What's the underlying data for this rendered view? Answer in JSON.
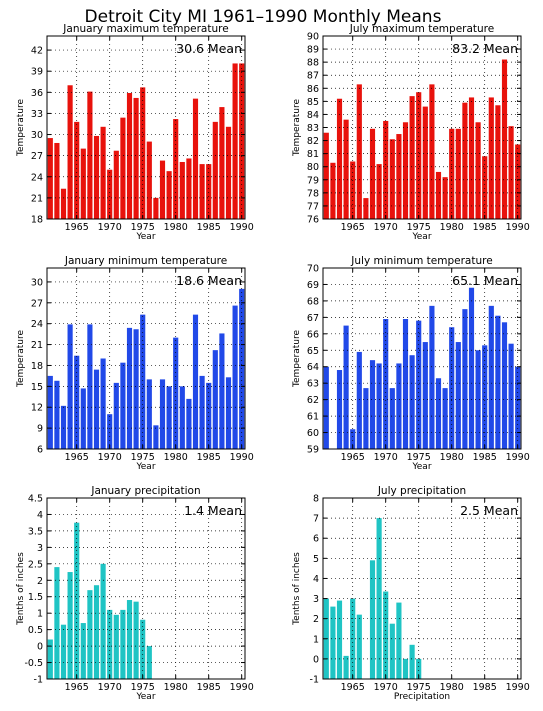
{
  "figure_title": "Detroit City MI   1961–1990 Monthly Means",
  "chart_data": [
    {
      "type": "bar",
      "title": "January maximum temperature",
      "mean_label": "30.6 Mean",
      "xlabel": "Year",
      "ylabel": "Temperature",
      "color": "#e8120c",
      "xlim": [
        1960.5,
        1990.5
      ],
      "xticks": [
        1965,
        1970,
        1975,
        1980,
        1985,
        1990
      ],
      "ylim": [
        18,
        44
      ],
      "yticks": [
        18,
        21,
        24,
        27,
        30,
        33,
        36,
        39,
        42
      ],
      "baseline": 18,
      "grid": true,
      "x": [
        1961,
        1962,
        1963,
        1964,
        1965,
        1966,
        1967,
        1968,
        1969,
        1970,
        1971,
        1972,
        1973,
        1974,
        1975,
        1976,
        1977,
        1978,
        1979,
        1980,
        1981,
        1982,
        1983,
        1984,
        1985,
        1986,
        1987,
        1988,
        1989,
        1990
      ],
      "values": [
        29.5,
        28.8,
        22.3,
        37.0,
        31.8,
        28.0,
        36.1,
        29.8,
        31.1,
        25.0,
        27.7,
        32.4,
        35.9,
        35.2,
        36.7,
        29.0,
        21.0,
        26.3,
        24.8,
        32.2,
        26.1,
        26.6,
        35.1,
        25.8,
        25.8,
        31.8,
        33.9,
        31.1,
        40.1,
        40.1
      ]
    },
    {
      "type": "bar",
      "title": "July maximum temperature",
      "mean_label": "83.2 Mean",
      "xlabel": "Year",
      "ylabel": "Temperature",
      "color": "#e8120c",
      "xlim": [
        1960.5,
        1990.5
      ],
      "xticks": [
        1965,
        1970,
        1975,
        1980,
        1985,
        1990
      ],
      "ylim": [
        76,
        90
      ],
      "yticks": [
        76,
        77,
        78,
        79,
        80,
        81,
        82,
        83,
        84,
        85,
        86,
        87,
        88,
        89,
        90
      ],
      "baseline": 76,
      "grid": true,
      "x": [
        1961,
        1962,
        1963,
        1964,
        1965,
        1966,
        1967,
        1968,
        1969,
        1970,
        1971,
        1972,
        1973,
        1974,
        1975,
        1976,
        1977,
        1978,
        1979,
        1980,
        1981,
        1982,
        1983,
        1984,
        1985,
        1986,
        1987,
        1988,
        1989,
        1990
      ],
      "values": [
        82.6,
        80.3,
        85.2,
        83.6,
        80.4,
        86.3,
        77.6,
        82.9,
        80.2,
        83.5,
        82.1,
        82.5,
        83.4,
        85.4,
        85.7,
        84.6,
        86.3,
        79.6,
        79.2,
        82.9,
        82.9,
        84.9,
        85.3,
        83.4,
        80.8,
        85.3,
        84.7,
        88.2,
        83.1,
        81.7
      ]
    },
    {
      "type": "bar",
      "title": "January minimum temperature",
      "mean_label": "18.6 Mean",
      "xlabel": "Year",
      "ylabel": "Temperature",
      "color": "#2149e8",
      "xlim": [
        1960.5,
        1990.5
      ],
      "xticks": [
        1965,
        1970,
        1975,
        1980,
        1985,
        1990
      ],
      "ylim": [
        6,
        32
      ],
      "yticks": [
        6,
        9,
        12,
        15,
        18,
        21,
        24,
        27,
        30
      ],
      "baseline": 6,
      "grid": true,
      "x": [
        1961,
        1962,
        1963,
        1964,
        1965,
        1966,
        1967,
        1968,
        1969,
        1970,
        1971,
        1972,
        1973,
        1974,
        1975,
        1976,
        1977,
        1978,
        1979,
        1980,
        1981,
        1982,
        1983,
        1984,
        1985,
        1986,
        1987,
        1988,
        1989,
        1990
      ],
      "values": [
        16.5,
        15.8,
        12.2,
        23.9,
        19.4,
        14.7,
        23.9,
        17.4,
        19.0,
        11.0,
        15.5,
        18.4,
        23.4,
        23.2,
        25.3,
        16.0,
        9.4,
        16.0,
        15.0,
        22.0,
        15.0,
        13.2,
        25.3,
        16.5,
        15.5,
        20.2,
        22.6,
        16.3,
        26.6,
        29.0
      ]
    },
    {
      "type": "bar",
      "title": "July minimum temperature",
      "mean_label": "65.1 Mean",
      "xlabel": "Year",
      "ylabel": "Temperature",
      "color": "#2149e8",
      "xlim": [
        1960.5,
        1990.5
      ],
      "xticks": [
        1965,
        1970,
        1975,
        1980,
        1985,
        1990
      ],
      "ylim": [
        59,
        70
      ],
      "yticks": [
        59,
        60,
        61,
        62,
        63,
        64,
        65,
        66,
        67,
        68,
        69,
        70
      ],
      "baseline": 59,
      "grid": true,
      "x": [
        1961,
        1962,
        1963,
        1964,
        1965,
        1966,
        1967,
        1968,
        1969,
        1970,
        1971,
        1972,
        1973,
        1974,
        1975,
        1976,
        1977,
        1978,
        1979,
        1980,
        1981,
        1982,
        1983,
        1984,
        1985,
        1986,
        1987,
        1988,
        1989,
        1990
      ],
      "values": [
        64.0,
        59.0,
        63.8,
        66.5,
        60.2,
        64.9,
        62.7,
        64.4,
        64.2,
        66.9,
        62.7,
        64.2,
        66.9,
        64.7,
        66.8,
        65.5,
        67.7,
        63.3,
        62.7,
        66.4,
        65.5,
        67.5,
        68.8,
        65.0,
        65.3,
        67.7,
        67.1,
        66.7,
        65.4,
        64.0
      ]
    },
    {
      "type": "bar",
      "title": "January precipitation",
      "mean_label": "1.4 Mean",
      "xlabel": "Year",
      "ylabel": "Tenths of inches",
      "color": "#1fc4c4",
      "xlim": [
        1960.5,
        1990.5
      ],
      "xticks": [
        1965,
        1970,
        1975,
        1980,
        1985,
        1990
      ],
      "ylim": [
        -1,
        4.5
      ],
      "yticks": [
        -1,
        -0.5,
        0,
        0.5,
        1,
        1.5,
        2,
        2.5,
        3,
        3.5,
        4,
        4.5
      ],
      "baseline": -1,
      "grid": true,
      "x": [
        1961,
        1962,
        1963,
        1964,
        1965,
        1966,
        1967,
        1968,
        1969,
        1970,
        1971,
        1972,
        1973,
        1974,
        1975,
        1976
      ],
      "values": [
        0.2,
        2.4,
        0.65,
        2.25,
        3.75,
        0.7,
        1.7,
        1.85,
        2.5,
        1.1,
        0.95,
        1.1,
        1.4,
        1.35,
        0.8,
        0.0
      ]
    },
    {
      "type": "bar",
      "title": "July precipitation",
      "mean_label": "2.5 Mean",
      "xlabel": "Precipitation",
      "ylabel": "Tenths of inches",
      "color": "#1fc4c4",
      "xlim": [
        1960.5,
        1990.5
      ],
      "xticks": [
        1965,
        1970,
        1975,
        1980,
        1985,
        1990
      ],
      "ylim": [
        -1,
        8
      ],
      "yticks": [
        -1,
        0,
        1,
        2,
        3,
        4,
        5,
        6,
        7,
        8
      ],
      "baseline": -1,
      "grid": true,
      "x": [
        1961,
        1962,
        1963,
        1964,
        1965,
        1966,
        1967,
        1968,
        1969,
        1970,
        1971,
        1972,
        1973,
        1974,
        1975
      ],
      "values": [
        3.0,
        2.6,
        2.9,
        0.15,
        3.0,
        2.2,
        -1.0,
        4.9,
        7.0,
        3.35,
        1.75,
        2.8,
        0.0,
        0.7,
        0.0
      ]
    }
  ]
}
